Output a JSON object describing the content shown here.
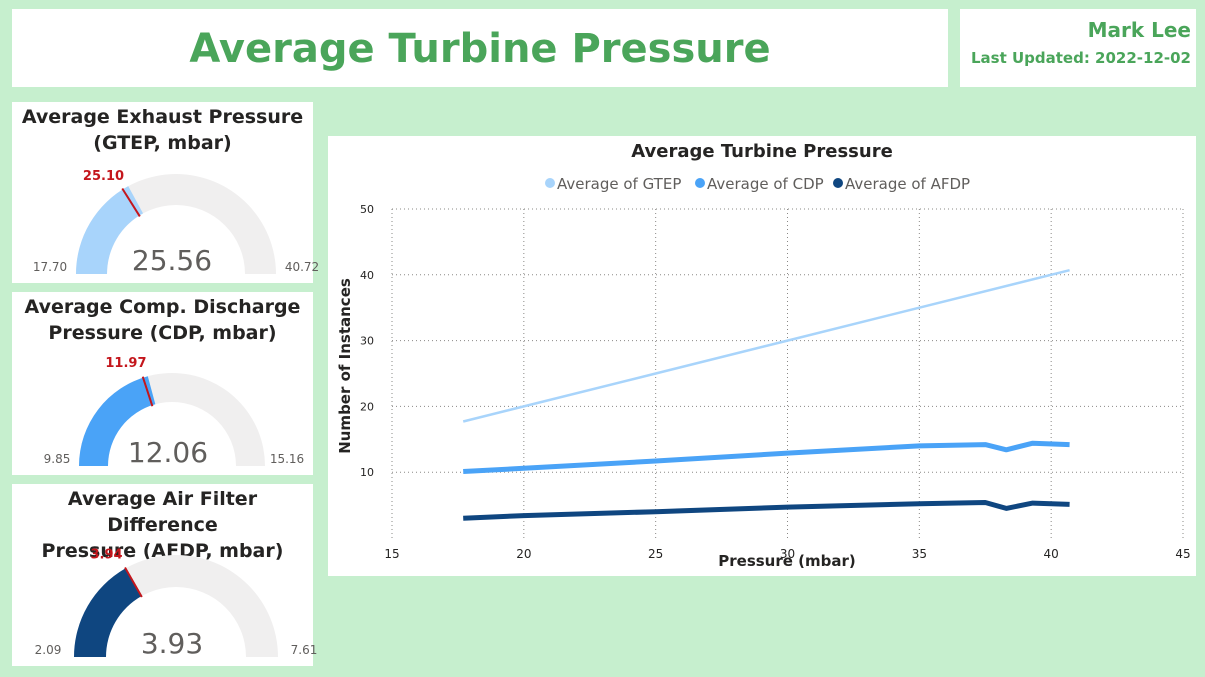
{
  "header": {
    "title": "Average Turbine Pressure",
    "author": "Mark Lee",
    "last_updated": "Last Updated: 2022-12-02"
  },
  "gauges": [
    {
      "title_line1": "Average Exhaust Pressure",
      "title_line2": "(GTEP, mbar)",
      "value": "25.56",
      "target": "25.10",
      "min": "17.70",
      "max": "40.72",
      "fill_color": "#a8d4fb"
    },
    {
      "title_line1": "Average Comp. Discharge",
      "title_line2": "Pressure (CDP, mbar)",
      "value": "12.06",
      "target": "11.97",
      "min": "9.85",
      "max": "15.16",
      "fill_color": "#4aa3f7"
    },
    {
      "title_line1": "Average Air Filter Difference",
      "title_line2": "Pressure (AFDP, mbar)",
      "value": "3.93",
      "target": "3.94",
      "min": "2.09",
      "max": "7.61",
      "fill_color": "#0f4680"
    }
  ],
  "colors": {
    "background": "#c6efce",
    "title_green": "#4aa55a",
    "target_red": "#c4161c",
    "gauge_track": "#f0efef"
  },
  "chart_data": {
    "type": "line",
    "title": "Average Turbine Pressure",
    "xlabel": "Pressure (mbar)",
    "ylabel": "Number of Instances",
    "xlim": [
      15,
      45
    ],
    "ylim": [
      0,
      50
    ],
    "x_ticks": [
      "15",
      "20",
      "25",
      "30",
      "35",
      "40",
      "45"
    ],
    "y_ticks": [
      "10",
      "20",
      "30",
      "40",
      "50"
    ],
    "grid": true,
    "legend_position": "top-center",
    "series": [
      {
        "name": "Average of GTEP",
        "color": "#a8d4fb",
        "points": [
          [
            17.7,
            17.7
          ],
          [
            20,
            20
          ],
          [
            25,
            25
          ],
          [
            30,
            30
          ],
          [
            35,
            35
          ],
          [
            40.7,
            40.7
          ]
        ]
      },
      {
        "name": "Average of CDP",
        "color": "#4aa3f7",
        "points": [
          [
            17.7,
            10.1
          ],
          [
            20,
            10.6
          ],
          [
            25,
            11.7
          ],
          [
            30,
            12.9
          ],
          [
            35,
            14.0
          ],
          [
            37.5,
            14.2
          ],
          [
            38.3,
            13.4
          ],
          [
            39.3,
            14.4
          ],
          [
            40.7,
            14.2
          ]
        ]
      },
      {
        "name": "Average of AFDP",
        "color": "#0f4680",
        "points": [
          [
            17.7,
            3.0
          ],
          [
            20,
            3.4
          ],
          [
            25,
            4.0
          ],
          [
            30,
            4.7
          ],
          [
            35,
            5.2
          ],
          [
            37.5,
            5.4
          ],
          [
            38.3,
            4.5
          ],
          [
            39.3,
            5.3
          ],
          [
            40.7,
            5.1
          ]
        ]
      }
    ]
  }
}
